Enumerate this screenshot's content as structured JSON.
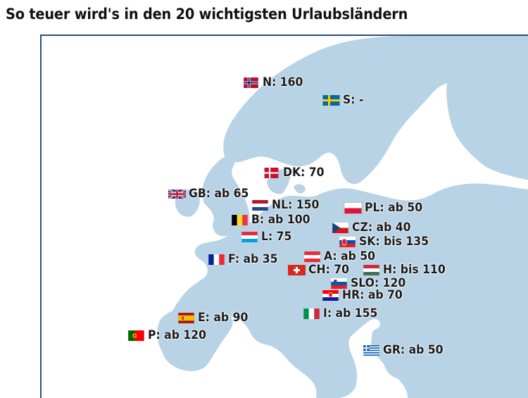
{
  "title": "So teuer wird's in den 20 wichtigsten Urlaubsländern",
  "colors": {
    "land": "#b8d3e6",
    "sea": "#ffffff",
    "frame": "#2a4e7a"
  },
  "countries": [
    {
      "id": "n",
      "label": "N: 160",
      "flag": "norway-flag-icon"
    },
    {
      "id": "s",
      "label": "S: -",
      "flag": "sweden-flag-icon"
    },
    {
      "id": "dk",
      "label": "DK: 70",
      "flag": "denmark-flag-icon"
    },
    {
      "id": "gb",
      "label": "GB: ab 65",
      "flag": "uk-flag-icon"
    },
    {
      "id": "nl",
      "label": "NL: 150",
      "flag": "netherlands-flag-icon"
    },
    {
      "id": "pl",
      "label": "PL: ab 50",
      "flag": "poland-flag-icon"
    },
    {
      "id": "b",
      "label": "B: ab 100",
      "flag": "belgium-flag-icon"
    },
    {
      "id": "cz",
      "label": "CZ: ab 40",
      "flag": "czech-flag-icon"
    },
    {
      "id": "l",
      "label": "L: 75",
      "flag": "luxembourg-flag-icon"
    },
    {
      "id": "sk",
      "label": "SK: bis 135",
      "flag": "slovakia-flag-icon"
    },
    {
      "id": "f",
      "label": "F: ab 35",
      "flag": "france-flag-icon"
    },
    {
      "id": "a",
      "label": "A: ab 50",
      "flag": "austria-flag-icon"
    },
    {
      "id": "ch",
      "label": "CH: 70",
      "flag": "switzerland-flag-icon"
    },
    {
      "id": "h",
      "label": "H: bis 110",
      "flag": "hungary-flag-icon"
    },
    {
      "id": "slo",
      "label": "SLO: 120",
      "flag": "slovenia-flag-icon"
    },
    {
      "id": "hr",
      "label": "HR: ab 70",
      "flag": "croatia-flag-icon"
    },
    {
      "id": "i",
      "label": "I: ab 155",
      "flag": "italy-flag-icon"
    },
    {
      "id": "e",
      "label": "E: ab 90",
      "flag": "spain-flag-icon"
    },
    {
      "id": "p",
      "label": "P: ab 120",
      "flag": "portugal-flag-icon"
    },
    {
      "id": "gr",
      "label": "GR: ab 50",
      "flag": "greece-flag-icon"
    }
  ]
}
